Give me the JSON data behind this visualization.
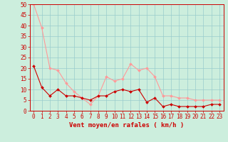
{
  "x": [
    0,
    1,
    2,
    3,
    4,
    5,
    6,
    7,
    8,
    9,
    10,
    11,
    12,
    13,
    14,
    15,
    16,
    17,
    18,
    19,
    20,
    21,
    22,
    23
  ],
  "y_dark": [
    21,
    11,
    7,
    10,
    7,
    7,
    6,
    5,
    7,
    7,
    9,
    10,
    9,
    10,
    4,
    6,
    2,
    3,
    2,
    2,
    2,
    2,
    3,
    3
  ],
  "y_light": [
    50,
    39,
    20,
    19,
    13,
    9,
    6,
    3,
    7,
    16,
    14,
    15,
    22,
    19,
    20,
    16,
    7,
    7,
    6,
    6,
    5,
    5,
    5,
    5
  ],
  "color_dark": "#cc0000",
  "color_light": "#ff9999",
  "bg_color": "#cceedd",
  "grid_color": "#99cccc",
  "ylim": [
    0,
    50
  ],
  "xlim": [
    -0.5,
    23.5
  ],
  "yticks": [
    0,
    5,
    10,
    15,
    20,
    25,
    30,
    35,
    40,
    45,
    50
  ],
  "xticks": [
    0,
    1,
    2,
    3,
    4,
    5,
    6,
    7,
    8,
    9,
    10,
    11,
    12,
    13,
    14,
    15,
    16,
    17,
    18,
    19,
    20,
    21,
    22,
    23
  ],
  "xlabel": "Vent moyen/en rafales ( km/h )",
  "markersize": 2.0,
  "linewidth": 0.8,
  "xlabel_fontsize": 6.5,
  "tick_fontsize": 5.5
}
